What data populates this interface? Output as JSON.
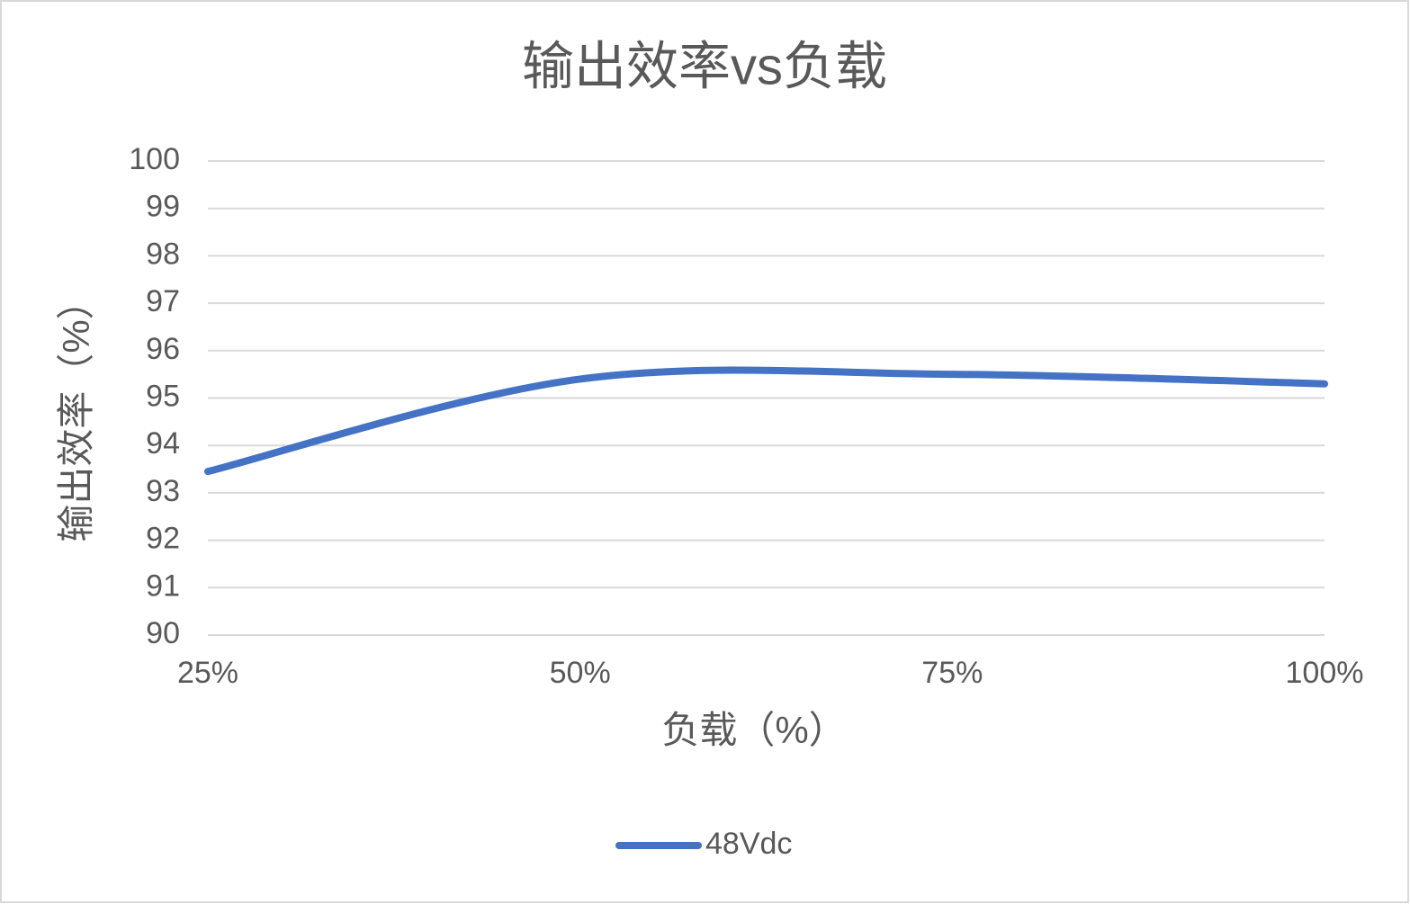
{
  "chart_data": {
    "type": "line",
    "title": "输出效率vs负载",
    "x_label": "负载（%）",
    "y_label": "输出效率（%）",
    "categories": [
      "25%",
      "50%",
      "75%",
      "100%"
    ],
    "series": [
      {
        "name": "48Vdc",
        "color": "#4472c4",
        "values": [
          93.45,
          95.4,
          95.5,
          95.3
        ]
      }
    ],
    "ylim": [
      90,
      100
    ],
    "yticks": [
      90,
      91,
      92,
      93,
      94,
      95,
      96,
      97,
      98,
      99,
      100
    ],
    "grid": true,
    "smooth": true,
    "legend": "bottom"
  }
}
